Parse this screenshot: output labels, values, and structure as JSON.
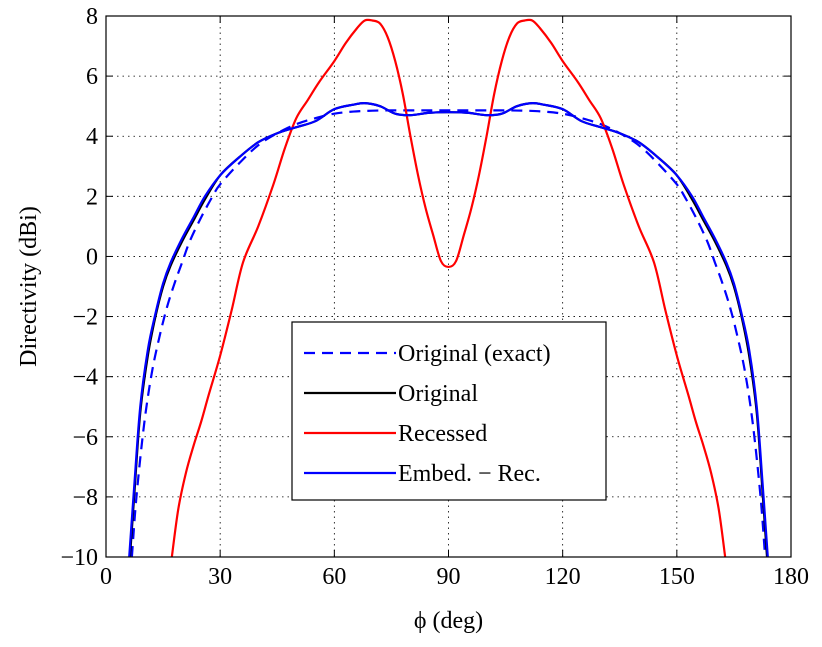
{
  "chart_data": {
    "type": "line",
    "title": "",
    "xlabel": "ϕ (deg)",
    "ylabel": "Directivity (dBi)",
    "xlim": [
      0,
      180
    ],
    "ylim": [
      -10,
      8
    ],
    "xticks": [
      0,
      30,
      60,
      90,
      120,
      150,
      180
    ],
    "yticks": [
      -10,
      -8,
      -6,
      -4,
      -2,
      0,
      2,
      4,
      6,
      8
    ],
    "xtick_labels": [
      "0",
      "30",
      "60",
      "90",
      "120",
      "150",
      "180"
    ],
    "ytick_labels": [
      "−10",
      "−8",
      "−6",
      "−4",
      "−2",
      "0",
      "2",
      "4",
      "6",
      "8"
    ],
    "grid": true,
    "legend_position": "center-bottom",
    "series": [
      {
        "name": "Original (exact)",
        "color": "#0000ff",
        "dash": "dashed",
        "x": [
          6.8,
          8,
          10,
          12,
          14,
          16,
          18,
          20,
          22,
          25,
          28,
          30,
          35,
          40,
          45,
          50,
          55,
          60,
          65,
          70,
          75,
          80,
          85,
          90,
          95,
          100,
          105,
          110,
          115,
          120,
          125,
          130,
          135,
          140,
          145,
          150,
          152,
          155,
          158,
          160,
          162,
          164,
          166,
          168,
          170,
          172,
          173.2
        ],
        "y": [
          -10,
          -8,
          -5.6,
          -3.9,
          -2.7,
          -1.7,
          -0.9,
          -0.2,
          0.5,
          1.3,
          2.0,
          2.4,
          3.1,
          3.7,
          4.1,
          4.4,
          4.6,
          4.75,
          4.82,
          4.85,
          4.86,
          4.86,
          4.86,
          4.86,
          4.86,
          4.86,
          4.86,
          4.85,
          4.82,
          4.75,
          4.6,
          4.4,
          4.1,
          3.7,
          3.1,
          2.4,
          2.0,
          1.3,
          0.5,
          -0.2,
          -0.9,
          -1.7,
          -2.7,
          -3.9,
          -5.6,
          -8,
          -10
        ]
      },
      {
        "name": "Original",
        "color": "#000000",
        "dash": "solid",
        "x": [
          6.3,
          7.5,
          9,
          11,
          13,
          15,
          17,
          20,
          23,
          26,
          30,
          35,
          40,
          45,
          50,
          55,
          60,
          65,
          68,
          72,
          76,
          80,
          85,
          90,
          95,
          100,
          104,
          108,
          112,
          115,
          120,
          125,
          130,
          135,
          140,
          145,
          150,
          154,
          157,
          160,
          163,
          165,
          167,
          169,
          171,
          172.5,
          173.7
        ],
        "y": [
          -10,
          -7.8,
          -5.2,
          -3.3,
          -2.0,
          -1.0,
          -0.3,
          0.5,
          1.2,
          1.9,
          2.7,
          3.3,
          3.8,
          4.1,
          4.3,
          4.5,
          4.9,
          5.05,
          5.1,
          5.0,
          4.75,
          4.7,
          4.78,
          4.8,
          4.78,
          4.7,
          4.75,
          5.0,
          5.1,
          5.05,
          4.9,
          4.5,
          4.3,
          4.1,
          3.8,
          3.3,
          2.7,
          1.9,
          1.2,
          0.5,
          -0.3,
          -1.0,
          -2.0,
          -3.3,
          -5.2,
          -7.8,
          -10
        ]
      },
      {
        "name": "Recessed",
        "color": "#ff0000",
        "dash": "solid",
        "x": [
          17.3,
          19,
          21,
          23,
          25,
          27,
          30,
          33,
          36,
          40,
          44,
          47,
          50,
          53,
          56,
          60,
          63,
          66,
          68,
          70,
          72,
          74,
          76,
          78,
          80,
          82,
          84,
          86,
          88,
          90,
          92,
          94,
          96,
          98,
          100,
          102,
          104,
          106,
          108,
          110,
          112,
          114,
          117,
          120,
          124,
          127,
          130,
          133,
          136,
          140,
          144,
          147,
          150,
          153,
          155,
          157,
          159,
          161,
          162.7
        ],
        "y": [
          -10,
          -8.4,
          -7.2,
          -6.3,
          -5.5,
          -4.6,
          -3.3,
          -1.8,
          -0.2,
          1.0,
          2.4,
          3.6,
          4.6,
          5.2,
          5.8,
          6.5,
          7.1,
          7.6,
          7.85,
          7.85,
          7.75,
          7.3,
          6.5,
          5.4,
          4.0,
          2.7,
          1.6,
          0.7,
          -0.15,
          -0.35,
          -0.15,
          0.7,
          1.6,
          2.7,
          4.0,
          5.4,
          6.5,
          7.3,
          7.75,
          7.85,
          7.85,
          7.6,
          7.1,
          6.5,
          5.8,
          5.2,
          4.6,
          3.6,
          2.4,
          1.0,
          -0.2,
          -1.8,
          -3.3,
          -4.6,
          -5.5,
          -6.3,
          -7.2,
          -8.4,
          -10
        ]
      },
      {
        "name": "Embed. − Rec.",
        "color": "#0000ff",
        "dash": "solid",
        "x": [
          6.1,
          7.5,
          9,
          11,
          13,
          15,
          17,
          20,
          23,
          26,
          30,
          35,
          40,
          45,
          50,
          55,
          60,
          65,
          68,
          72,
          76,
          80,
          85,
          90,
          95,
          100,
          104,
          108,
          112,
          115,
          120,
          125,
          130,
          135,
          140,
          145,
          150,
          154,
          157,
          160,
          163,
          165,
          167,
          169,
          171,
          172.5,
          173.9
        ],
        "y": [
          -10,
          -7.5,
          -5.0,
          -3.1,
          -1.9,
          -0.9,
          -0.2,
          0.6,
          1.3,
          2.0,
          2.7,
          3.3,
          3.8,
          4.1,
          4.3,
          4.5,
          4.9,
          5.05,
          5.1,
          5.0,
          4.75,
          4.7,
          4.78,
          4.8,
          4.78,
          4.7,
          4.75,
          5.0,
          5.1,
          5.05,
          4.9,
          4.5,
          4.3,
          4.1,
          3.8,
          3.3,
          2.7,
          2.0,
          1.3,
          0.6,
          -0.2,
          -0.9,
          -1.9,
          -3.1,
          -5.0,
          -7.5,
          -10
        ]
      }
    ],
    "legend": [
      {
        "label": "Original (exact)",
        "color": "#0000ff",
        "dash": "dashed"
      },
      {
        "label": "Original",
        "color": "#000000",
        "dash": "solid"
      },
      {
        "label": "Recessed",
        "color": "#ff0000",
        "dash": "solid"
      },
      {
        "label": "Embed. − Rec.",
        "color": "#0000ff",
        "dash": "solid"
      }
    ]
  }
}
